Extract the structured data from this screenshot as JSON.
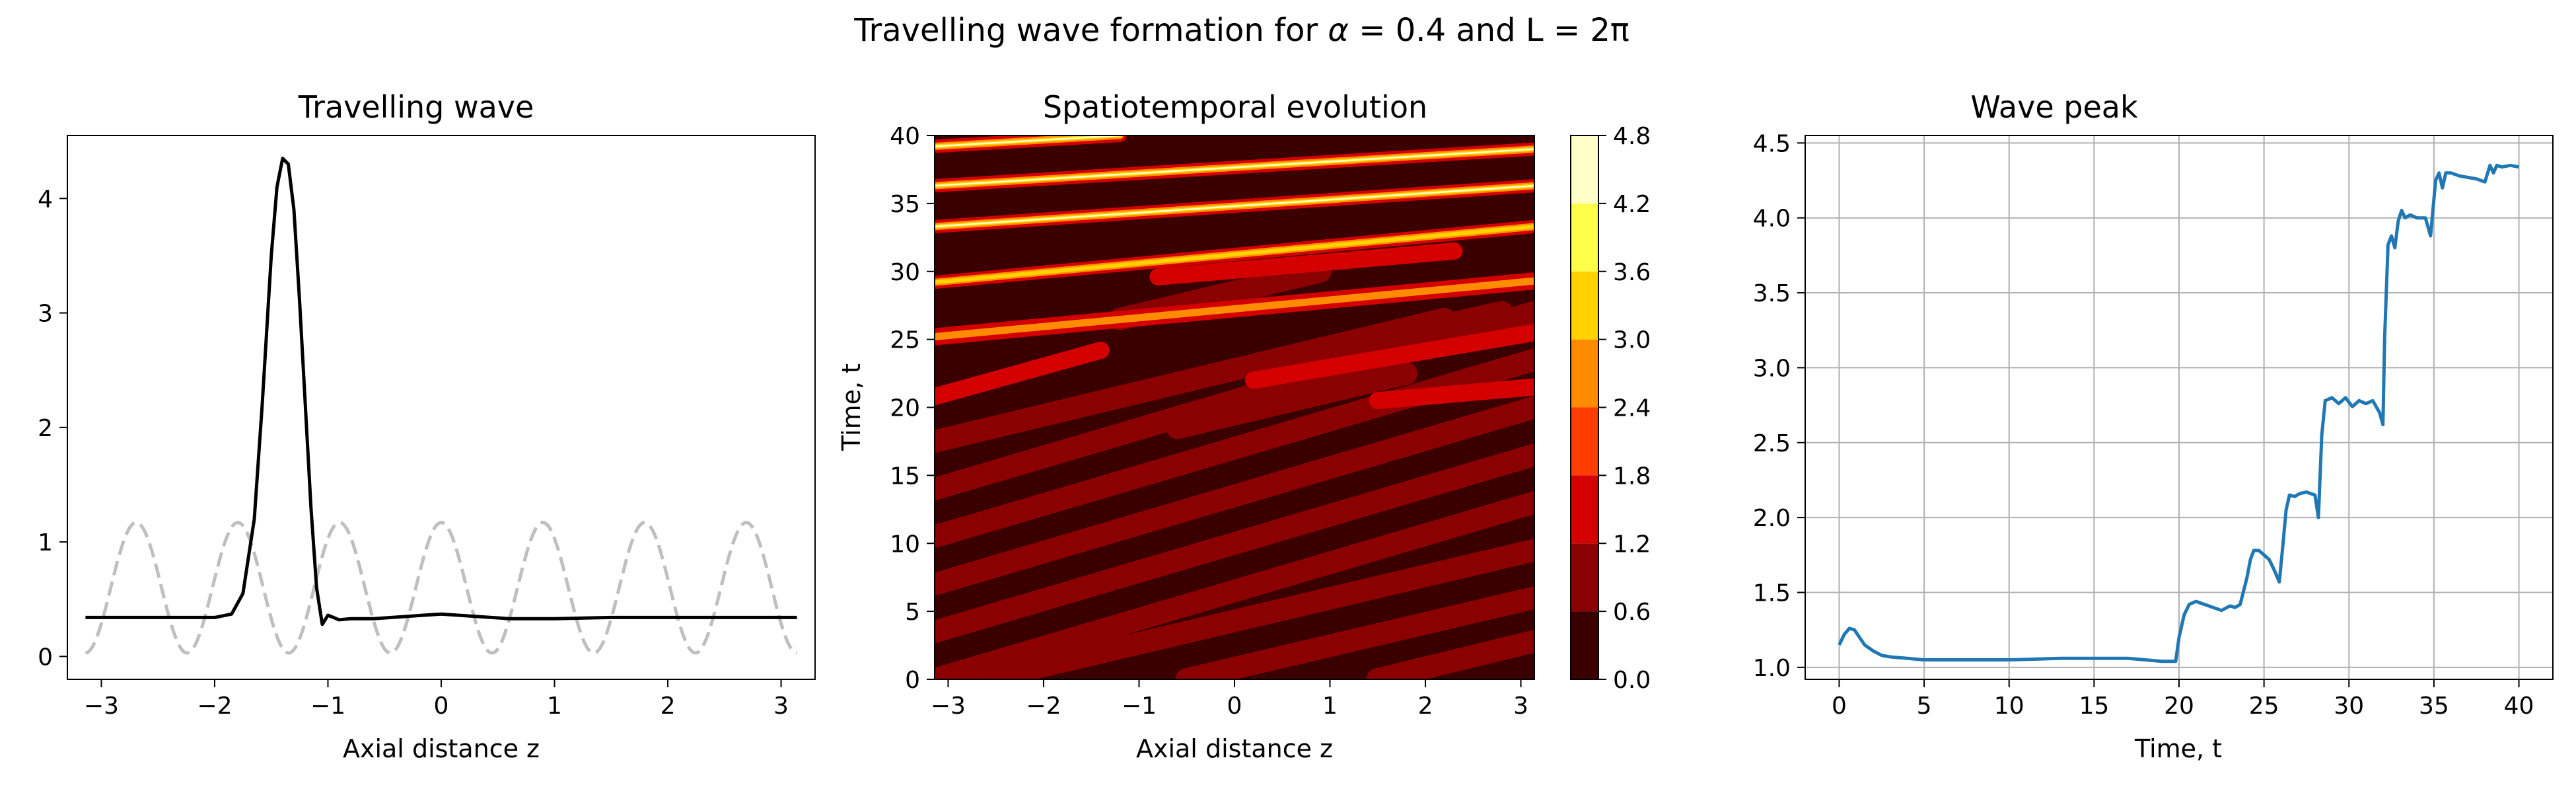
{
  "figure": {
    "suptitle_prefix": "Travelling wave formation for ",
    "alpha_symbol": "α",
    "suptitle_suffix": " = 0.4 and L = 2π"
  },
  "chart_data": [
    {
      "type": "line",
      "title": "Travelling wave",
      "xlabel": "Axial distance z",
      "ylabel": "",
      "xlim": [
        -3.3,
        3.3
      ],
      "ylim": [
        -0.2,
        4.55
      ],
      "xticks": [
        -3,
        -2,
        -1,
        0,
        1,
        2,
        3
      ],
      "yticks": [
        0,
        1,
        2,
        3,
        4
      ],
      "grid": false,
      "series": [
        {
          "role": "wave",
          "color": "#000000",
          "style": "solid",
          "x": [
            -3.14,
            -2.4,
            -2.0,
            -1.85,
            -1.75,
            -1.65,
            -1.58,
            -1.5,
            -1.45,
            -1.4,
            -1.35,
            -1.3,
            -1.25,
            -1.2,
            -1.15,
            -1.1,
            -1.05,
            -1.0,
            -0.9,
            -0.8,
            -0.6,
            -0.3,
            0.0,
            0.3,
            0.6,
            1.0,
            1.5,
            2.0,
            2.5,
            3.14
          ],
          "values": [
            0.34,
            0.34,
            0.34,
            0.37,
            0.55,
            1.2,
            2.2,
            3.5,
            4.1,
            4.35,
            4.3,
            3.9,
            3.1,
            2.2,
            1.3,
            0.6,
            0.28,
            0.36,
            0.32,
            0.33,
            0.33,
            0.35,
            0.37,
            0.35,
            0.33,
            0.33,
            0.34,
            0.34,
            0.34,
            0.34
          ]
        },
        {
          "role": "forcing",
          "color": "#bfbfbf",
          "style": "dashed",
          "baseline": 0.6,
          "amplitude": 0.57,
          "wavenumber": 7,
          "phase": 0.0,
          "x_range": [
            -3.14,
            3.14
          ]
        }
      ]
    },
    {
      "type": "heatmap",
      "title": "Spatiotemporal evolution",
      "xlabel": "Axial distance z",
      "ylabel": "Time, t",
      "xlim": [
        -3.14159,
        3.14159
      ],
      "ylim": [
        0,
        40
      ],
      "xticks": [
        -3,
        -2,
        -1,
        0,
        1,
        2,
        3
      ],
      "yticks": [
        0,
        5,
        10,
        15,
        20,
        25,
        30,
        35,
        40
      ],
      "colorbar": {
        "levels": [
          0.0,
          0.6,
          1.2,
          1.8,
          2.4,
          3.0,
          3.6,
          4.2,
          4.8
        ],
        "tick_labels": [
          "0.0",
          "0.6",
          "1.2",
          "1.8",
          "2.4",
          "3.0",
          "3.6",
          "4.2",
          "4.8"
        ],
        "colors": [
          "#3a0000",
          "#8b0000",
          "#d40000",
          "#ff3c00",
          "#ff8c00",
          "#ffd200",
          "#ffff4a",
          "#ffffc8"
        ]
      },
      "background_color": "#3a0000",
      "bands": [
        {
          "z0": -3.14,
          "t0": 0.0,
          "z1": 3.14,
          "t1": 13.0,
          "level": 0.9
        },
        {
          "z0": -3.14,
          "t0": 3.5,
          "z1": 3.14,
          "t1": 16.5,
          "level": 0.9
        },
        {
          "z0": -3.14,
          "t0": 7.0,
          "z1": 3.14,
          "t1": 20.0,
          "level": 0.9
        },
        {
          "z0": -3.14,
          "t0": 10.5,
          "z1": 3.14,
          "t1": 23.5,
          "level": 0.9
        },
        {
          "z0": -3.14,
          "t0": 14.0,
          "z1": 3.14,
          "t1": 27.0,
          "level": 0.9
        },
        {
          "z0": -3.14,
          "t0": 17.5,
          "z1": 2.2,
          "t1": 26.5,
          "level": 0.9
        },
        {
          "z0": -2.6,
          "t0": 0.0,
          "z1": 3.14,
          "t1": 9.5,
          "level": 0.9
        },
        {
          "z0": -0.5,
          "t0": 0.0,
          "z1": 3.14,
          "t1": 6.0,
          "level": 0.9
        },
        {
          "z0": 1.5,
          "t0": 0.0,
          "z1": 3.14,
          "t1": 2.8,
          "level": 0.9
        },
        {
          "z0": -0.6,
          "t0": 18.5,
          "z1": 1.8,
          "t1": 22.5,
          "level": 0.9
        },
        {
          "z0": 0.6,
          "t0": 23.5,
          "z1": 2.8,
          "t1": 27.0,
          "level": 0.9
        },
        {
          "z0": -1.2,
          "t0": 26.5,
          "z1": 0.9,
          "t1": 30.0,
          "level": 0.9
        }
      ],
      "ridges": [
        {
          "z0": -3.14,
          "t0": 20.8,
          "z1": -1.4,
          "t1": 24.2,
          "level": 1.4
        },
        {
          "z0": -3.14,
          "t0": 25.2,
          "z1": 3.14,
          "t1": 29.3,
          "level": 2.1
        },
        {
          "z0": -3.14,
          "t0": 29.2,
          "z1": 3.14,
          "t1": 33.3,
          "level": 3.8
        },
        {
          "z0": -3.14,
          "t0": 33.3,
          "z1": 3.14,
          "t1": 36.3,
          "level": 4.3
        },
        {
          "z0": -3.14,
          "t0": 36.3,
          "z1": 3.14,
          "t1": 39.0,
          "level": 4.5
        },
        {
          "z0": -3.14,
          "t0": 39.2,
          "z1": -1.2,
          "t1": 40.0,
          "level": 4.5
        },
        {
          "z0": 1.5,
          "t0": 20.5,
          "z1": 3.14,
          "t1": 21.5,
          "level": 1.4
        },
        {
          "z0": 0.2,
          "t0": 22.0,
          "z1": 3.14,
          "t1": 25.5,
          "level": 1.4
        },
        {
          "z0": -0.8,
          "t0": 29.6,
          "z1": 2.3,
          "t1": 31.5,
          "level": 1.5
        }
      ]
    },
    {
      "type": "line",
      "title": "Wave peak",
      "xlabel": "Time, t",
      "ylabel": "",
      "xlim": [
        -2.0,
        42.0
      ],
      "ylim": [
        0.92,
        4.55
      ],
      "xticks": [
        0,
        5,
        10,
        15,
        20,
        25,
        30,
        35,
        40
      ],
      "yticks": [
        1.0,
        1.5,
        2.0,
        2.5,
        3.0,
        3.5,
        4.0,
        4.5
      ],
      "ytick_labels": [
        "1.0",
        "1.5",
        "2.0",
        "2.5",
        "3.0",
        "3.5",
        "4.0",
        "4.5"
      ],
      "grid": true,
      "series": [
        {
          "color": "#1f77b4",
          "x": [
            0,
            0.3,
            0.6,
            0.9,
            1.2,
            1.5,
            2,
            2.5,
            3,
            4,
            5,
            7,
            10,
            13,
            15,
            17,
            18,
            19,
            19.5,
            19.8,
            20,
            20.3,
            20.6,
            21,
            21.5,
            22,
            22.5,
            23,
            23.3,
            23.6,
            24,
            24.2,
            24.4,
            24.7,
            25,
            25.3,
            25.6,
            25.9,
            26.1,
            26.3,
            26.5,
            26.8,
            27.1,
            27.5,
            28,
            28.2,
            28.4,
            28.6,
            29,
            29.4,
            29.8,
            30.2,
            30.6,
            31,
            31.4,
            31.8,
            32,
            32.1,
            32.3,
            32.5,
            32.7,
            32.9,
            33.1,
            33.3,
            33.6,
            34,
            34.5,
            34.8,
            35.1,
            35.3,
            35.5,
            35.7,
            36,
            36.5,
            37,
            37.5,
            38,
            38.3,
            38.5,
            38.7,
            39,
            39.5,
            40
          ],
          "values": [
            1.15,
            1.22,
            1.26,
            1.25,
            1.2,
            1.15,
            1.11,
            1.08,
            1.07,
            1.06,
            1.05,
            1.05,
            1.05,
            1.06,
            1.06,
            1.06,
            1.05,
            1.04,
            1.04,
            1.04,
            1.2,
            1.35,
            1.42,
            1.44,
            1.42,
            1.4,
            1.38,
            1.41,
            1.4,
            1.42,
            1.6,
            1.72,
            1.78,
            1.78,
            1.75,
            1.72,
            1.65,
            1.57,
            1.8,
            2.05,
            2.15,
            2.14,
            2.16,
            2.17,
            2.15,
            2.0,
            2.55,
            2.78,
            2.8,
            2.76,
            2.8,
            2.74,
            2.78,
            2.76,
            2.78,
            2.7,
            2.62,
            3.2,
            3.82,
            3.88,
            3.8,
            3.98,
            4.05,
            4.0,
            4.02,
            4.0,
            4.0,
            3.88,
            4.25,
            4.3,
            4.2,
            4.3,
            4.3,
            4.28,
            4.27,
            4.26,
            4.24,
            4.35,
            4.3,
            4.35,
            4.34,
            4.35,
            4.34
          ]
        }
      ]
    }
  ]
}
